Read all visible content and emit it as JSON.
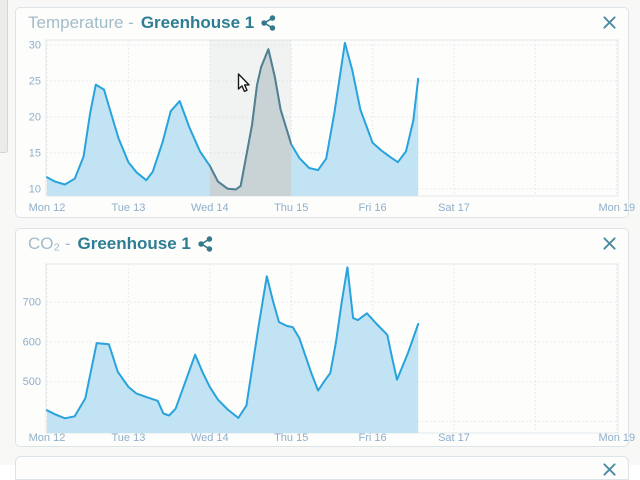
{
  "cards": [
    {
      "title_light": "Temperature -",
      "title_bold": "Greenhouse 1"
    },
    {
      "title_light": "CO₂ -",
      "title_bold": "Greenhouse 1"
    }
  ],
  "theme": {
    "title_light_color": "#a2bcc8",
    "title_bold_color": "#2d7e93",
    "share_icon_color": "#35798c",
    "close_icon_color": "#4d8ba1",
    "axis_label_color": "#8fafca",
    "grid_color": "#e3e7e9",
    "plot_border_color": "#e4e9eb"
  },
  "chart_data": [
    {
      "type": "area",
      "title": "Temperature - Greenhouse 1",
      "x_tick_labels": [
        "Mon 12",
        "Tue 13",
        "Wed 14",
        "Thu 15",
        "Fri 16",
        "Sat 17",
        "Mon 19"
      ],
      "x_tick_days": [
        0,
        1,
        2,
        3,
        4,
        5,
        7
      ],
      "x_grid_days": [
        0,
        1,
        2,
        3,
        4,
        5,
        6,
        7
      ],
      "y_gridlines": [
        {
          "v": 10,
          "label": "10"
        },
        {
          "v": 15,
          "label": "15"
        },
        {
          "v": 20,
          "label": "20"
        },
        {
          "v": 25,
          "label": "25"
        },
        {
          "v": 30,
          "label": "30"
        }
      ],
      "ylim": [
        9,
        30.7
      ],
      "xlim_days": [
        0,
        7.1
      ],
      "grid": true,
      "legend": "none",
      "selection_days": [
        2,
        3
      ],
      "colors": {
        "line": "#29a3dc",
        "fill": "#c1e3f4",
        "selection_line": "#53808f",
        "selection_fill": "#c9d3d6",
        "selection_tint": "rgba(90,120,130,0.07)"
      },
      "series": [
        {
          "name": "temperature",
          "points": [
            [
              0.0,
              11.6
            ],
            [
              0.1,
              11.0
            ],
            [
              0.22,
              10.6
            ],
            [
              0.34,
              11.4
            ],
            [
              0.45,
              14.5
            ],
            [
              0.53,
              20.5
            ],
            [
              0.6,
              24.5
            ],
            [
              0.7,
              23.8
            ],
            [
              0.8,
              20.0
            ],
            [
              0.88,
              17.0
            ],
            [
              1.0,
              13.7
            ],
            [
              1.1,
              12.3
            ],
            [
              1.22,
              11.2
            ],
            [
              1.3,
              12.4
            ],
            [
              1.42,
              16.5
            ],
            [
              1.52,
              20.8
            ],
            [
              1.63,
              22.2
            ],
            [
              1.75,
              18.5
            ],
            [
              1.88,
              15.2
            ],
            [
              2.0,
              13.2
            ],
            [
              2.1,
              11.0
            ],
            [
              2.22,
              10.0
            ],
            [
              2.32,
              9.9
            ],
            [
              2.38,
              10.4
            ],
            [
              2.52,
              18.9
            ],
            [
              2.58,
              24.4
            ],
            [
              2.63,
              26.9
            ],
            [
              2.72,
              29.4
            ],
            [
              2.8,
              25.5
            ],
            [
              2.87,
              21.0
            ],
            [
              3.0,
              16.2
            ],
            [
              3.1,
              14.3
            ],
            [
              3.22,
              12.9
            ],
            [
              3.33,
              12.6
            ],
            [
              3.43,
              14.2
            ],
            [
              3.53,
              20.5
            ],
            [
              3.66,
              30.3
            ],
            [
              3.75,
              26.5
            ],
            [
              3.85,
              21.0
            ],
            [
              4.0,
              16.4
            ],
            [
              4.11,
              15.3
            ],
            [
              4.22,
              14.4
            ],
            [
              4.31,
              13.7
            ],
            [
              4.41,
              15.2
            ],
            [
              4.5,
              19.5
            ],
            [
              4.56,
              25.3
            ]
          ]
        }
      ]
    },
    {
      "type": "area",
      "title": "CO₂ - Greenhouse 1",
      "x_tick_labels": [
        "Mon 12",
        "Tue 13",
        "Wed 14",
        "Thu 15",
        "Fri 16",
        "Sat 17",
        "Mon 19"
      ],
      "x_tick_days": [
        0,
        1,
        2,
        3,
        4,
        5,
        7
      ],
      "x_grid_days": [
        0,
        1,
        2,
        3,
        4,
        5,
        6,
        7
      ],
      "y_gridlines": [
        {
          "v": 400,
          "label": ""
        },
        {
          "v": 500,
          "label": "500"
        },
        {
          "v": 600,
          "label": "600"
        },
        {
          "v": 700,
          "label": "700"
        }
      ],
      "ylim": [
        371,
        796
      ],
      "xlim_days": [
        0,
        7.1
      ],
      "grid": true,
      "legend": "none",
      "selection_days": null,
      "colors": {
        "line": "#29a3dc",
        "fill": "#c1e3f4"
      },
      "series": [
        {
          "name": "co2",
          "points": [
            [
              0.0,
              428
            ],
            [
              0.1,
              418
            ],
            [
              0.22,
              408
            ],
            [
              0.34,
              413
            ],
            [
              0.47,
              458
            ],
            [
              0.61,
              597
            ],
            [
              0.76,
              594
            ],
            [
              0.87,
              525
            ],
            [
              1.0,
              487
            ],
            [
              1.1,
              470
            ],
            [
              1.24,
              460
            ],
            [
              1.36,
              452
            ],
            [
              1.43,
              420
            ],
            [
              1.5,
              415
            ],
            [
              1.58,
              432
            ],
            [
              1.7,
              500
            ],
            [
              1.82,
              568
            ],
            [
              1.92,
              520
            ],
            [
              2.0,
              487
            ],
            [
              2.1,
              455
            ],
            [
              2.22,
              430
            ],
            [
              2.35,
              409
            ],
            [
              2.45,
              440
            ],
            [
              2.6,
              640
            ],
            [
              2.7,
              765
            ],
            [
              2.78,
              700
            ],
            [
              2.85,
              650
            ],
            [
              2.95,
              640
            ],
            [
              3.02,
              637
            ],
            [
              3.1,
              610
            ],
            [
              3.25,
              520
            ],
            [
              3.33,
              478
            ],
            [
              3.42,
              505
            ],
            [
              3.48,
              522
            ],
            [
              3.55,
              600
            ],
            [
              3.62,
              700
            ],
            [
              3.69,
              788
            ],
            [
              3.76,
              660
            ],
            [
              3.82,
              655
            ],
            [
              3.93,
              672
            ],
            [
              4.05,
              645
            ],
            [
              4.18,
              618
            ],
            [
              4.24,
              560
            ],
            [
              4.3,
              505
            ],
            [
              4.43,
              570
            ],
            [
              4.56,
              645
            ]
          ]
        }
      ]
    }
  ]
}
